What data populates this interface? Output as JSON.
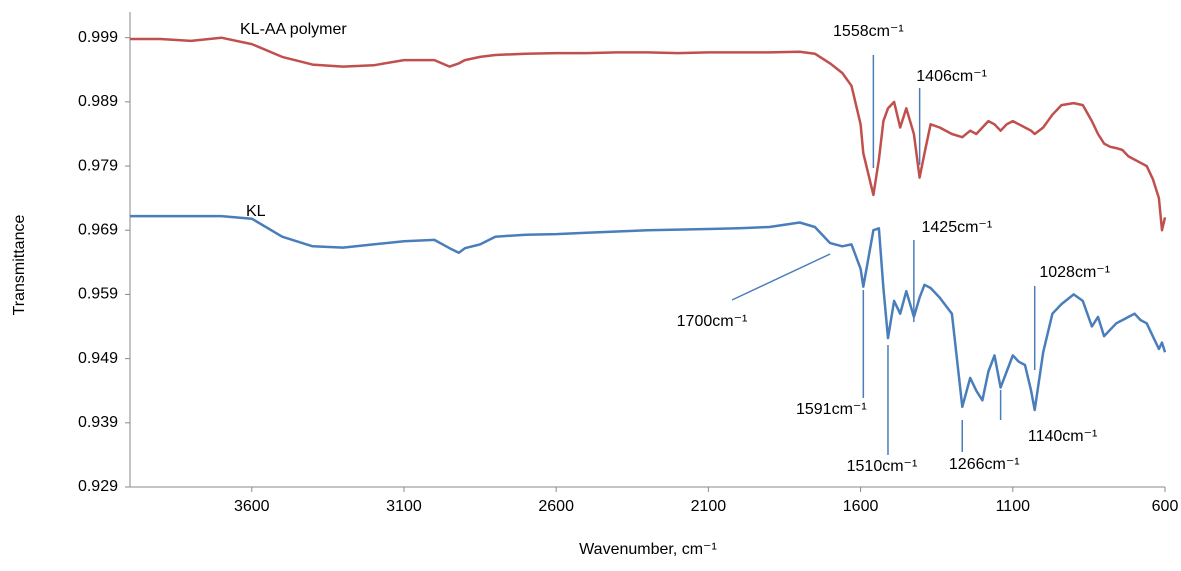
{
  "chart_data": {
    "type": "line",
    "xlabel": "Wavenumber, cm⁻¹",
    "ylabel": "Transmittance",
    "xlim": [
      4000,
      600
    ],
    "ylim": [
      0.929,
      1.003
    ],
    "xticks": [
      3600,
      3100,
      2600,
      2100,
      1600,
      1100,
      600
    ],
    "yticks": [
      0.929,
      0.939,
      0.949,
      0.959,
      0.969,
      0.979,
      0.989,
      0.999
    ],
    "x": [
      4000,
      3900,
      3800,
      3700,
      3600,
      3500,
      3400,
      3300,
      3200,
      3100,
      3000,
      2950,
      2920,
      2900,
      2850,
      2800,
      2700,
      2600,
      2500,
      2400,
      2300,
      2200,
      2100,
      2000,
      1900,
      1800,
      1750,
      1700,
      1660,
      1630,
      1600,
      1591,
      1558,
      1540,
      1525,
      1510,
      1490,
      1470,
      1450,
      1425,
      1406,
      1390,
      1370,
      1340,
      1300,
      1266,
      1240,
      1220,
      1200,
      1180,
      1160,
      1140,
      1120,
      1100,
      1080,
      1060,
      1040,
      1028,
      1000,
      970,
      940,
      900,
      870,
      840,
      820,
      800,
      780,
      760,
      740,
      720,
      700,
      680,
      660,
      640,
      620,
      610,
      600
    ],
    "series": [
      {
        "name": "KL-AA polymer",
        "color": "#c0504d",
        "values": [
          0.9988,
          0.9988,
          0.9985,
          0.999,
          0.998,
          0.996,
          0.9948,
          0.9945,
          0.9947,
          0.9955,
          0.9955,
          0.9945,
          0.995,
          0.9955,
          0.996,
          0.9963,
          0.9965,
          0.9966,
          0.9966,
          0.9967,
          0.9967,
          0.9966,
          0.9967,
          0.9967,
          0.9967,
          0.9968,
          0.9965,
          0.995,
          0.9935,
          0.9915,
          0.9855,
          0.981,
          0.9745,
          0.98,
          0.986,
          0.988,
          0.989,
          0.985,
          0.988,
          0.984,
          0.9772,
          0.981,
          0.9855,
          0.985,
          0.984,
          0.9835,
          0.9845,
          0.984,
          0.985,
          0.986,
          0.9855,
          0.9845,
          0.9855,
          0.986,
          0.9855,
          0.985,
          0.9845,
          0.984,
          0.985,
          0.987,
          0.9885,
          0.9888,
          0.9885,
          0.986,
          0.984,
          0.9825,
          0.982,
          0.9818,
          0.9815,
          0.9805,
          0.98,
          0.9795,
          0.979,
          0.977,
          0.974,
          0.969,
          0.971
        ]
      },
      {
        "name": "KL",
        "color": "#4a7ebb",
        "values": [
          0.9712,
          0.9712,
          0.9712,
          0.9712,
          0.9708,
          0.968,
          0.9665,
          0.9663,
          0.9668,
          0.9673,
          0.9675,
          0.9662,
          0.9655,
          0.9662,
          0.9668,
          0.968,
          0.9683,
          0.9684,
          0.9686,
          0.9688,
          0.969,
          0.9691,
          0.9692,
          0.9693,
          0.9695,
          0.9702,
          0.9695,
          0.967,
          0.9665,
          0.9668,
          0.963,
          0.9602,
          0.969,
          0.9693,
          0.96,
          0.9522,
          0.958,
          0.956,
          0.9595,
          0.9555,
          0.9585,
          0.9605,
          0.96,
          0.9585,
          0.956,
          0.9415,
          0.946,
          0.944,
          0.9425,
          0.947,
          0.9495,
          0.9445,
          0.947,
          0.9495,
          0.9485,
          0.948,
          0.944,
          0.941,
          0.95,
          0.956,
          0.9575,
          0.959,
          0.958,
          0.954,
          0.9555,
          0.9525,
          0.9535,
          0.9545,
          0.955,
          0.9555,
          0.956,
          0.955,
          0.9545,
          0.9525,
          0.9505,
          0.9515,
          0.95
        ]
      }
    ],
    "annotations": [
      {
        "text": "1558cm⁻¹",
        "x": 1558
      },
      {
        "text": "1406cm⁻¹",
        "x": 1406
      },
      {
        "text": "1425cm⁻¹",
        "x": 1425
      },
      {
        "text": "1700cm⁻¹",
        "x": 1700
      },
      {
        "text": "1591cm⁻¹",
        "x": 1591
      },
      {
        "text": "1510cm⁻¹",
        "x": 1510
      },
      {
        "text": "1266cm⁻¹",
        "x": 1266
      },
      {
        "text": "1140cm⁻¹",
        "x": 1140
      },
      {
        "text": "1028cm⁻¹",
        "x": 1028
      }
    ]
  }
}
